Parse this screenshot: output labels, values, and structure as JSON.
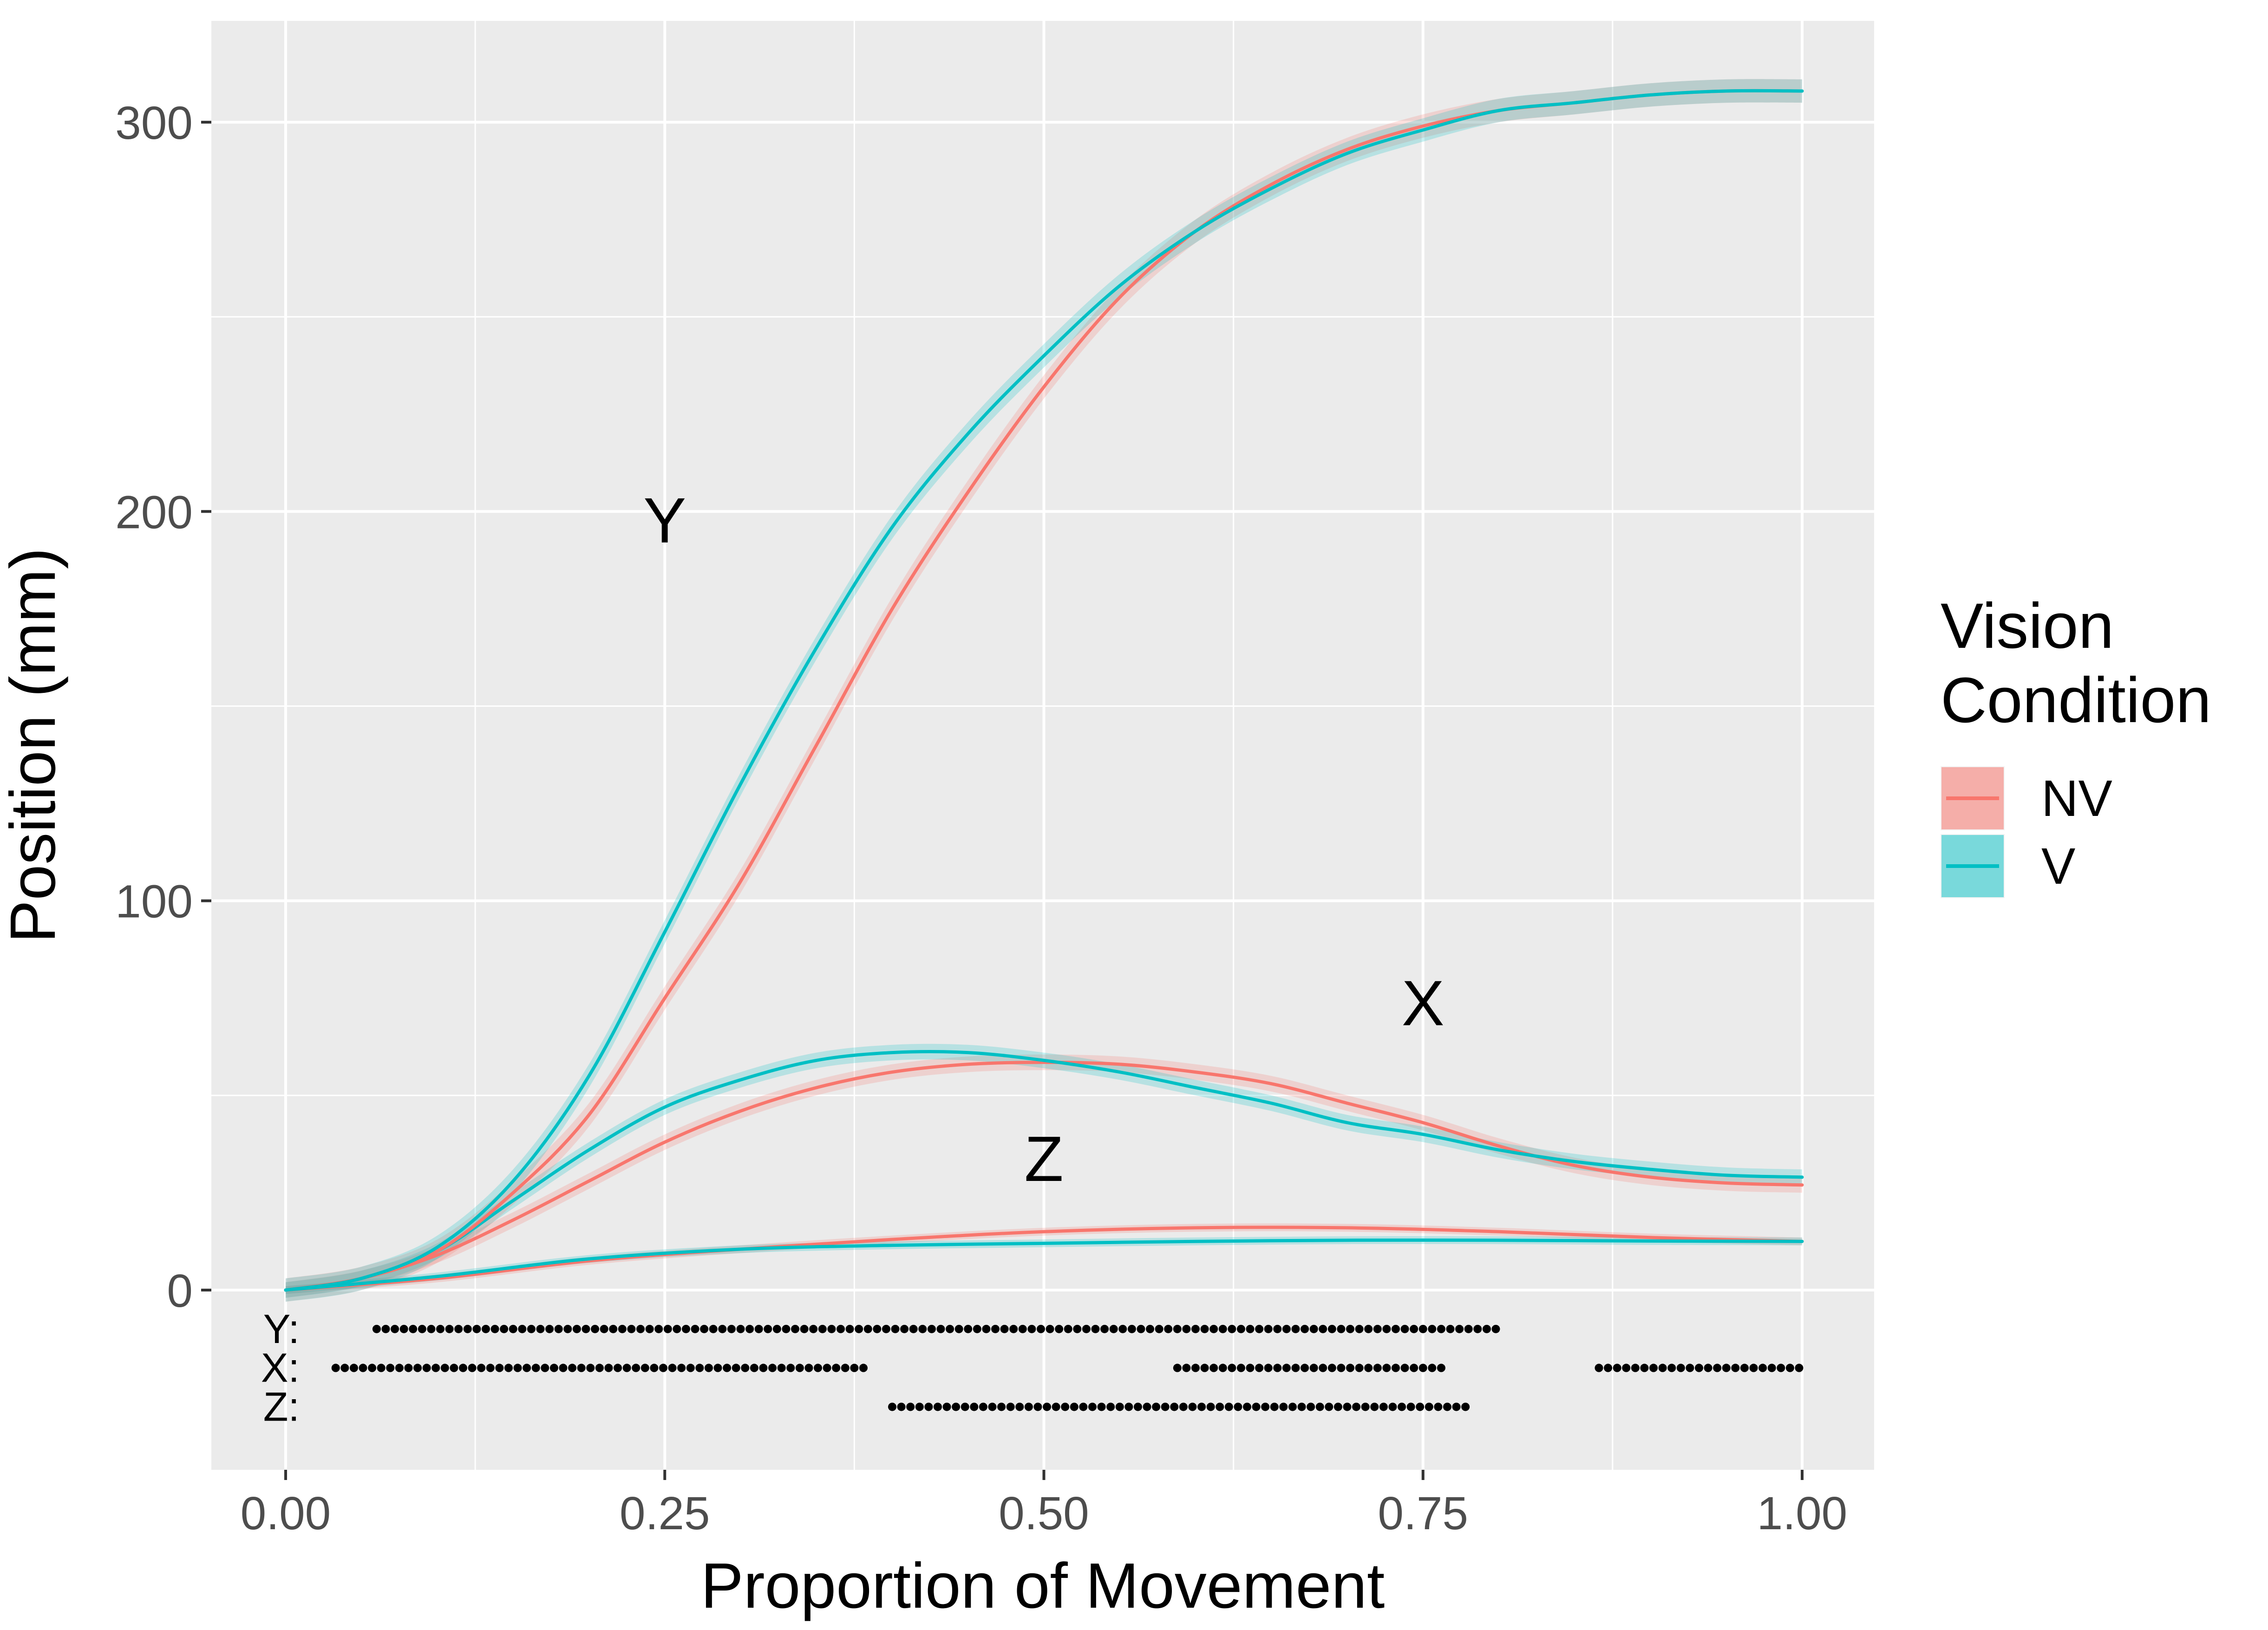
{
  "chart_data": {
    "type": "line",
    "xlabel": "Proportion of Movement",
    "ylabel": "Position (mm)",
    "xlim": [
      -0.1,
      2.1
    ],
    "ylim": [
      -48,
      325
    ],
    "x_ticks": [
      0.0,
      0.25,
      0.5,
      0.75,
      1.0
    ],
    "x_tick_labels": [
      "0.00",
      "0.25",
      "0.50",
      "0.75",
      "1.00"
    ],
    "y_ticks": [
      0,
      100,
      200,
      300
    ],
    "y_tick_labels": [
      "0",
      "100",
      "200",
      "300"
    ],
    "grid": true,
    "legend": {
      "title_lines": [
        "Vision",
        "Condition"
      ],
      "placement": "right",
      "entries": [
        {
          "label": "NV",
          "color": "#F8766D"
        },
        {
          "label": "V",
          "color": "#00BFC4"
        }
      ]
    },
    "colors": {
      "NV": "#F8766D",
      "V": "#00BFC4"
    },
    "annotations": [
      {
        "text": "Y",
        "x": 0.25,
        "y": 198
      },
      {
        "text": "X",
        "x": 0.75,
        "y": 74
      },
      {
        "text": "Z",
        "x": 0.5,
        "y": 34
      }
    ],
    "series": [
      {
        "group": "NV",
        "component": "Y",
        "ci": 3,
        "x": [
          0,
          0.05,
          0.1,
          0.15,
          0.2,
          0.25,
          0.3,
          0.35,
          0.4,
          0.45,
          0.5,
          0.55,
          0.6,
          0.65,
          0.7,
          0.75,
          0.8,
          0.85,
          0.9,
          0.95,
          1.0
        ],
        "y": [
          0,
          3,
          10,
          25,
          45,
          75,
          105,
          140,
          175,
          205,
          232,
          255,
          272,
          284,
          293,
          299,
          303,
          305,
          307,
          308,
          308
        ]
      },
      {
        "group": "V",
        "component": "Y",
        "ci": 3,
        "x": [
          0,
          0.05,
          0.1,
          0.15,
          0.2,
          0.25,
          0.3,
          0.35,
          0.4,
          0.45,
          0.5,
          0.55,
          0.6,
          0.65,
          0.7,
          0.75,
          0.8,
          0.85,
          0.9,
          0.95,
          1.0
        ],
        "y": [
          0,
          3,
          11,
          28,
          55,
          92,
          130,
          165,
          196,
          220,
          240,
          258,
          272,
          283,
          292,
          298,
          303,
          305,
          307,
          308,
          308
        ]
      },
      {
        "group": "NV",
        "component": "X",
        "ci": 2,
        "x": [
          0,
          0.05,
          0.1,
          0.15,
          0.2,
          0.25,
          0.3,
          0.35,
          0.4,
          0.45,
          0.5,
          0.55,
          0.6,
          0.65,
          0.7,
          0.75,
          0.8,
          0.85,
          0.9,
          0.95,
          1.0
        ],
        "y": [
          0,
          3,
          9,
          18,
          28,
          38,
          46,
          52,
          56,
          58,
          58.5,
          58,
          56,
          53,
          48,
          43,
          37,
          32,
          29,
          27.5,
          27
        ]
      },
      {
        "group": "V",
        "component": "X",
        "ci": 2,
        "x": [
          0,
          0.05,
          0.1,
          0.15,
          0.2,
          0.25,
          0.3,
          0.35,
          0.4,
          0.45,
          0.5,
          0.55,
          0.6,
          0.65,
          0.7,
          0.75,
          0.8,
          0.85,
          0.9,
          0.95,
          1.0
        ],
        "y": [
          0,
          3,
          10,
          23,
          36,
          47,
          54,
          59,
          61,
          61,
          59,
          56,
          52,
          48,
          43,
          40,
          36,
          33,
          31,
          29.5,
          29
        ]
      },
      {
        "group": "NV",
        "component": "Z",
        "ci": 1,
        "x": [
          0,
          0.1,
          0.2,
          0.3,
          0.4,
          0.5,
          0.6,
          0.7,
          0.8,
          0.9,
          1.0
        ],
        "y": [
          0,
          3,
          7.5,
          10.5,
          13,
          15,
          16,
          16,
          15,
          13.5,
          12.5
        ]
      },
      {
        "group": "V",
        "component": "Z",
        "ci": 1,
        "x": [
          0,
          0.1,
          0.2,
          0.3,
          0.4,
          0.5,
          0.6,
          0.7,
          0.8,
          0.9,
          1.0
        ],
        "y": [
          0,
          3.5,
          8,
          10.5,
          11.5,
          12,
          12.5,
          12.8,
          12.8,
          12.6,
          12.5
        ]
      }
    ],
    "significance": {
      "rows": [
        {
          "label": "Y:",
          "y": -10,
          "segments": [
            [
              0.06,
              0.8
            ]
          ]
        },
        {
          "label": "X:",
          "y": -20,
          "segments": [
            [
              0.033,
              0.383
            ],
            [
              0.588,
              0.766
            ],
            [
              0.866,
              1.0
            ]
          ]
        },
        {
          "label": "Z:",
          "y": -30,
          "segments": [
            [
              0.4,
              0.783
            ]
          ]
        }
      ],
      "dot_step": 0.006
    }
  }
}
